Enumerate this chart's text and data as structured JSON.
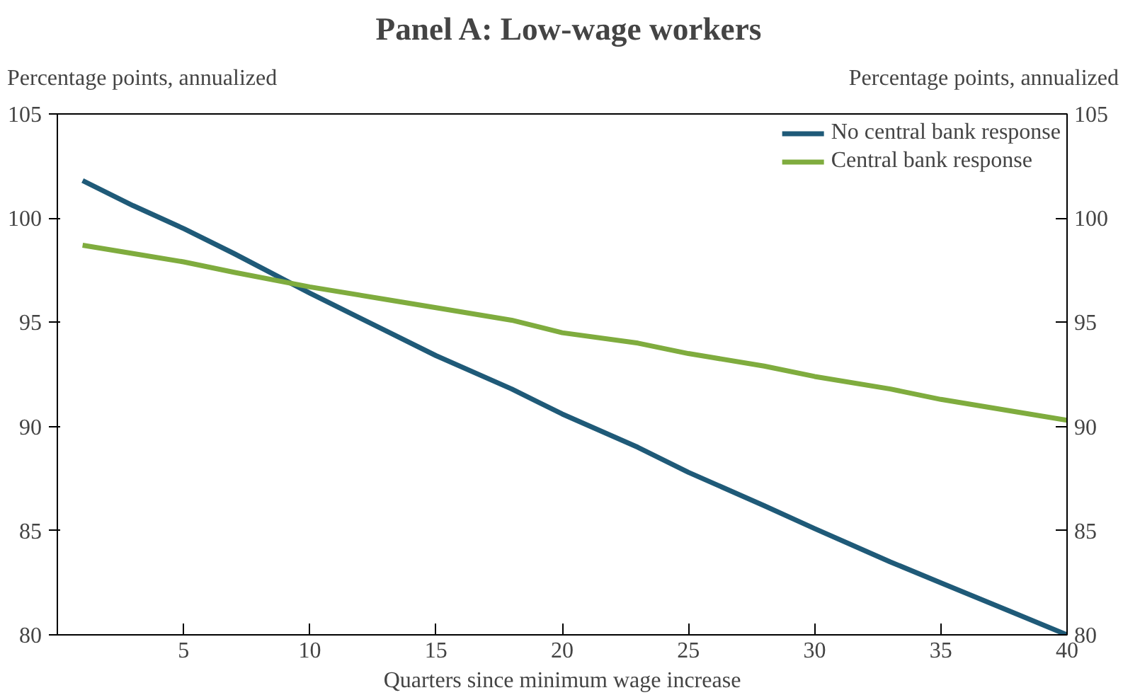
{
  "chart_data": {
    "type": "line",
    "title": "Panel A: Low-wage workers",
    "xlabel": "Quarters since minimum wage increase",
    "ylabel": "Percentage points, annualized",
    "y2label": "Percentage points, annualized",
    "series": [
      {
        "name": "No central bank response",
        "color": "#1f5a78",
        "x": [
          1,
          3,
          5,
          7,
          10,
          13,
          15,
          18,
          20,
          23,
          25,
          28,
          30,
          33,
          35,
          38,
          40
        ],
        "values": [
          101.8,
          100.6,
          99.5,
          98.3,
          96.4,
          94.6,
          93.4,
          91.8,
          90.6,
          89.0,
          87.8,
          86.2,
          85.1,
          83.5,
          82.5,
          81.0,
          80.0
        ]
      },
      {
        "name": "Central bank response",
        "color": "#7fac3e",
        "x": [
          1,
          3,
          5,
          7,
          10,
          13,
          15,
          18,
          20,
          23,
          25,
          28,
          30,
          33,
          35,
          38,
          40
        ],
        "values": [
          98.7,
          98.3,
          97.9,
          97.4,
          96.7,
          96.1,
          95.7,
          95.1,
          94.5,
          94.0,
          93.5,
          92.9,
          92.4,
          91.8,
          91.3,
          90.7,
          90.3
        ]
      }
    ],
    "xlim": [
      0,
      40
    ],
    "xticks": [
      5,
      10,
      15,
      20,
      25,
      30,
      35,
      40
    ],
    "ylim": [
      80,
      105
    ],
    "yticks": [
      80,
      85,
      90,
      95,
      100,
      105
    ],
    "y2lim": [
      80,
      105
    ],
    "y2ticks": [
      80,
      85,
      90,
      95,
      100,
      105
    ],
    "grid": false,
    "legend": "top right",
    "line_style": "solid",
    "marker": "none"
  }
}
